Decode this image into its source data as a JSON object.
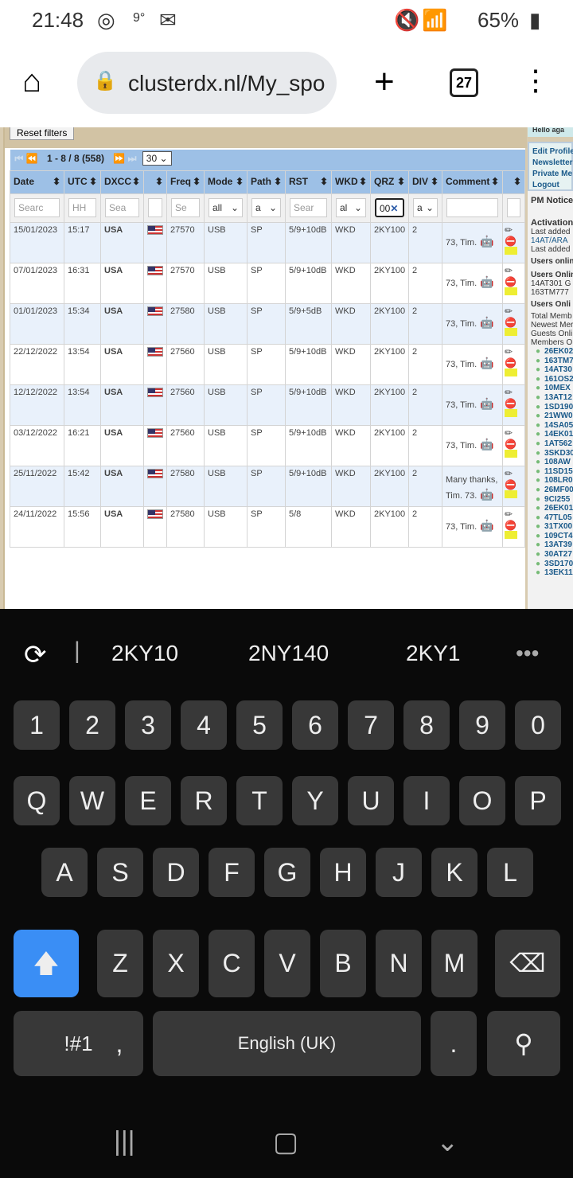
{
  "status": {
    "time": "21:48",
    "temp": "9°",
    "battery": "65%"
  },
  "browser": {
    "url": "clusterdx.nl/My_spo",
    "tabs": "27"
  },
  "page": {
    "reset": "Reset filters",
    "pager": "1 - 8 / 8 (558)",
    "per_page": "30",
    "headers": [
      "Date",
      "UTC",
      "DXCC",
      "",
      "Freq",
      "Mode",
      "Path",
      "RST",
      "WKD",
      "QRZ",
      "DIV",
      "Comment",
      ""
    ],
    "filters": [
      "Searc",
      "HH",
      "Sea",
      "",
      "Se",
      "all",
      "a",
      "Sear",
      "al",
      "00",
      "a",
      "",
      ""
    ],
    "rows": [
      [
        "15/01/2023",
        "15:17",
        "USA",
        "27570",
        "USB",
        "SP",
        "5/9+10dB",
        "WKD",
        "2KY100",
        "2",
        "73, Tim."
      ],
      [
        "07/01/2023",
        "16:31",
        "USA",
        "27570",
        "USB",
        "SP",
        "5/9+10dB",
        "WKD",
        "2KY100",
        "2",
        "73, Tim."
      ],
      [
        "01/01/2023",
        "15:34",
        "USA",
        "27580",
        "USB",
        "SP",
        "5/9+5dB",
        "WKD",
        "2KY100",
        "2",
        "73, Tim."
      ],
      [
        "22/12/2022",
        "13:54",
        "USA",
        "27560",
        "USB",
        "SP",
        "5/9+10dB",
        "WKD",
        "2KY100",
        "2",
        "73, Tim."
      ],
      [
        "12/12/2022",
        "13:54",
        "USA",
        "27560",
        "USB",
        "SP",
        "5/9+10dB",
        "WKD",
        "2KY100",
        "2",
        "73, Tim."
      ],
      [
        "03/12/2022",
        "16:21",
        "USA",
        "27560",
        "USB",
        "SP",
        "5/9+10dB",
        "WKD",
        "2KY100",
        "2",
        "73, Tim."
      ],
      [
        "25/11/2022",
        "15:42",
        "USA",
        "27580",
        "USB",
        "SP",
        "5/9+10dB",
        "WKD",
        "2KY100",
        "2",
        "Many thanks, Tim. 73."
      ],
      [
        "24/11/2022",
        "15:56",
        "USA",
        "27580",
        "USB",
        "SP",
        "5/8",
        "WKD",
        "2KY100",
        "2",
        "73, Tim."
      ]
    ]
  },
  "sidebar": {
    "hello": "Hello aga",
    "links": [
      "Edit Profile",
      "Newsletter",
      "Private Me",
      "Logout"
    ],
    "pm": "PM Notice",
    "activation": "Activation",
    "last1": "Last added",
    "last1v": "14AT/ARA",
    "last2": "Last added",
    "online1": "Users onlin",
    "online2": "Users Onlin",
    "u1": "14AT301 G",
    "u2": "163TM777",
    "online3": "Users Onli",
    "total": "Total Memb",
    "newest": "Newest Mer",
    "guests": "Guests Onli",
    "members": "Members O",
    "members_list": [
      "26EK02",
      "163TM7",
      "14AT30",
      "161OS2",
      "10MEX",
      "13AT12",
      "1SD190",
      "21WW0",
      "14SA05",
      "14EK01",
      "1AT562",
      "3SKD30",
      "108AW",
      "11SD15",
      "108LR0",
      "26MF00",
      "9CI255",
      "26EK01",
      "47TL05",
      "31TX00",
      "109CT4",
      "13AT39",
      "30AT27",
      "3SD170",
      "13EK11"
    ]
  },
  "keyboard": {
    "suggestions": [
      "2KY10",
      "2NY140",
      "2KY1"
    ],
    "rows": [
      [
        "1",
        "2",
        "3",
        "4",
        "5",
        "6",
        "7",
        "8",
        "9",
        "0"
      ],
      [
        "Q",
        "W",
        "E",
        "R",
        "T",
        "Y",
        "U",
        "I",
        "O",
        "P"
      ],
      [
        "A",
        "S",
        "D",
        "F",
        "G",
        "H",
        "J",
        "K",
        "L"
      ],
      [
        "Z",
        "X",
        "C",
        "V",
        "B",
        "N",
        "M"
      ]
    ],
    "sym": "!#1",
    "comma": ",",
    "space": "English (UK)",
    "period": "."
  }
}
